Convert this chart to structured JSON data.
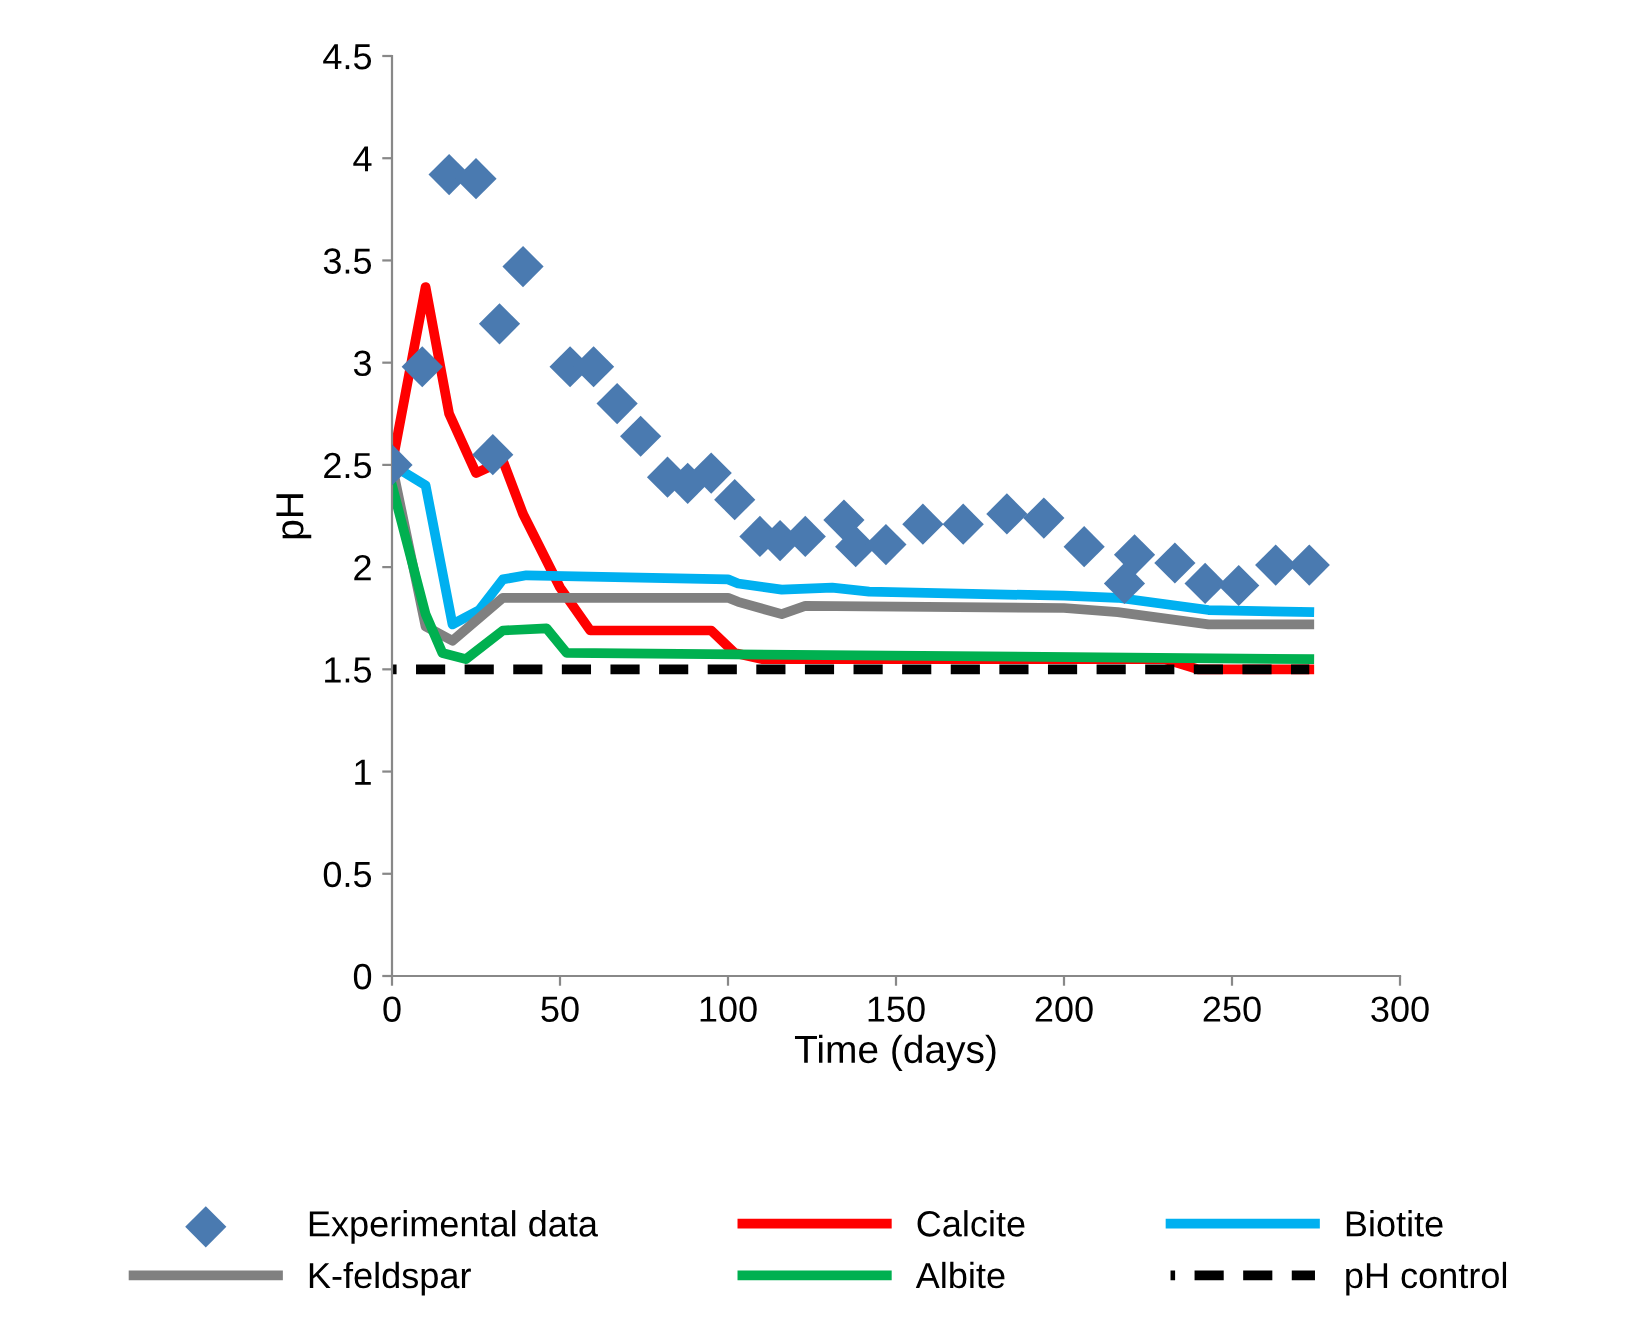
{
  "chart_data": {
    "type": "line",
    "xlabel": "Time (days)",
    "ylabel": "pH",
    "xlim": [
      0,
      300
    ],
    "xticks": [
      0,
      50,
      100,
      150,
      200,
      250,
      300
    ],
    "ylim": [
      0,
      4.5
    ],
    "yticks": [
      0,
      0.5,
      1,
      1.5,
      2,
      2.5,
      3,
      3.5,
      4,
      4.5
    ],
    "grid": false,
    "legend": "bottom",
    "series": [
      {
        "name": "Experimental data",
        "type": "scatter",
        "marker": "diamond",
        "color": "#4a7ab0",
        "x": [
          0,
          9,
          17,
          25,
          30,
          32,
          39,
          53,
          60,
          67,
          74,
          82,
          88,
          95,
          102,
          109.5,
          115.5,
          123,
          134.5,
          138,
          147,
          158,
          170,
          183,
          194,
          206,
          218,
          221,
          233,
          242,
          252,
          263,
          273
        ],
        "values": [
          2.5,
          2.98,
          3.92,
          3.9,
          2.55,
          3.19,
          3.47,
          2.98,
          2.98,
          2.8,
          2.64,
          2.44,
          2.41,
          2.46,
          2.33,
          2.15,
          2.13,
          2.15,
          2.23,
          2.1,
          2.11,
          2.21,
          2.21,
          2.26,
          2.24,
          2.1,
          1.92,
          2.06,
          2.02,
          1.92,
          1.91,
          2.01,
          2.01
        ]
      },
      {
        "name": "Calcite",
        "color": "#ff0000",
        "x": [
          0,
          10,
          17,
          25,
          33,
          39,
          50,
          59,
          95,
          102,
          110,
          230,
          240,
          273
        ],
        "values": [
          2.5,
          3.37,
          2.75,
          2.46,
          2.52,
          2.26,
          1.9,
          1.69,
          1.69,
          1.58,
          1.55,
          1.55,
          1.5,
          1.5
        ]
      },
      {
        "name": "Biotite",
        "color": "#00b0f0",
        "x": [
          0,
          10,
          18,
          26,
          33,
          40,
          100,
          103,
          116,
          131,
          142,
          200,
          216,
          243,
          273
        ],
        "values": [
          2.5,
          2.4,
          1.72,
          1.79,
          1.94,
          1.96,
          1.94,
          1.92,
          1.89,
          1.9,
          1.88,
          1.86,
          1.85,
          1.79,
          1.78
        ]
      },
      {
        "name": "K-feldspar",
        "color": "#808080",
        "x": [
          0,
          10,
          18,
          33,
          100,
          103,
          116,
          123,
          200,
          216,
          243,
          273
        ],
        "values": [
          2.5,
          1.71,
          1.64,
          1.85,
          1.85,
          1.83,
          1.77,
          1.81,
          1.8,
          1.78,
          1.72,
          1.72
        ]
      },
      {
        "name": "Albite",
        "color": "#00b050",
        "x": [
          0,
          10,
          15,
          22,
          33,
          46,
          52,
          273
        ],
        "values": [
          2.4,
          1.77,
          1.58,
          1.55,
          1.69,
          1.7,
          1.58,
          1.55
        ]
      },
      {
        "name": "pH control",
        "color": "#000000",
        "line_style": "dashed",
        "x": [
          0,
          273
        ],
        "values": [
          1.5,
          1.5
        ]
      }
    ]
  }
}
